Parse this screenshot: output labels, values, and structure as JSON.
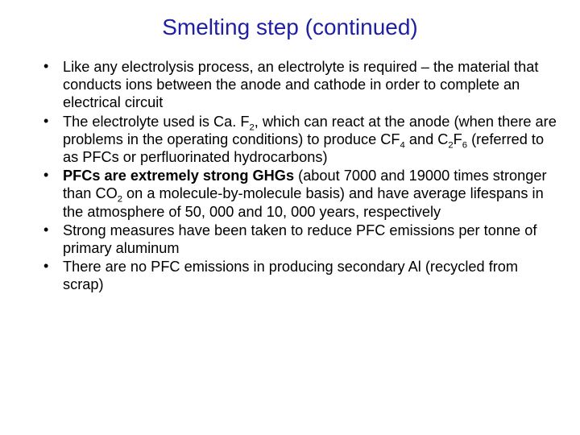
{
  "title": {
    "text": "Smelting step (continued)",
    "color": "#1f1fa3",
    "fontsize": 28
  },
  "body": {
    "color": "#000000",
    "fontsize": 18.2,
    "bullets": [
      {
        "segments": [
          {
            "t": "Like any electrolysis process, an electrolyte is required – the material that conducts ions between the anode and cathode in order to complete an electrical circuit"
          }
        ]
      },
      {
        "segments": [
          {
            "t": "The electrolyte used is Ca. F"
          },
          {
            "t": "2",
            "sub": true
          },
          {
            "t": ", which can react at the anode (when there are problems in the operating conditions) to produce CF"
          },
          {
            "t": "4",
            "sub": true
          },
          {
            "t": " and C"
          },
          {
            "t": "2",
            "sub": true
          },
          {
            "t": "F"
          },
          {
            "t": "6",
            "sub": true
          },
          {
            "t": " (referred to as PFCs or perfluorinated hydrocarbons)"
          }
        ]
      },
      {
        "segments": [
          {
            "t": "PFCs are extremely strong GHGs",
            "bold": true
          },
          {
            "t": " (about 7000 and 19000 times stronger than CO"
          },
          {
            "t": "2",
            "sub": true
          },
          {
            "t": " on a molecule-by-molecule basis) and have average lifespans in the atmosphere of 50, 000 and 10, 000 years, respectively"
          }
        ]
      },
      {
        "segments": [
          {
            "t": "Strong measures have been taken to reduce PFC emissions per tonne of primary aluminum"
          }
        ]
      },
      {
        "segments": [
          {
            "t": "There are no PFC emissions in producing secondary Al (recycled from scrap)"
          }
        ]
      }
    ]
  },
  "background_color": "#ffffff"
}
